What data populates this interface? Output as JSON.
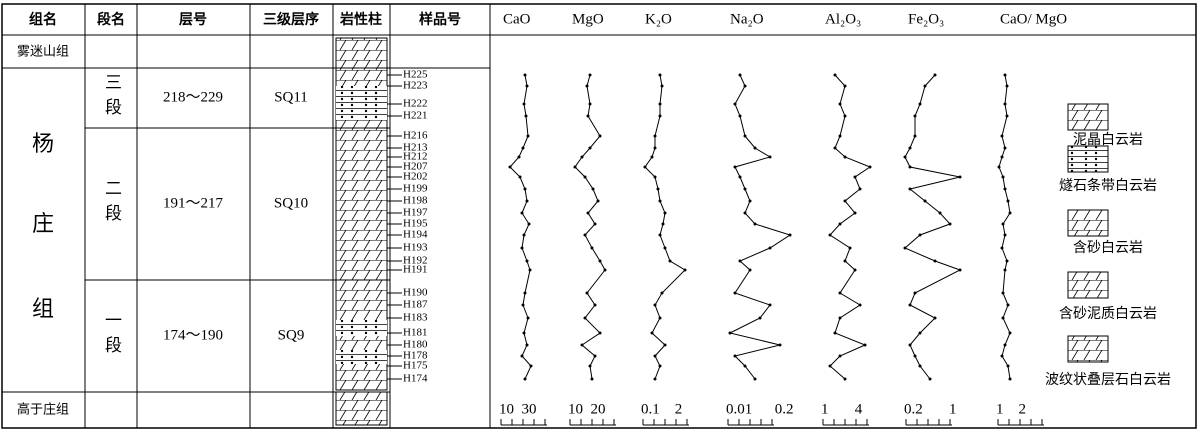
{
  "headers": [
    "组名",
    "段名",
    "层号",
    "三级层序",
    "岩性柱",
    "样品号"
  ],
  "formations": [
    "雾迷山组",
    "杨",
    "庄",
    "组",
    "高于庄组"
  ],
  "members": [
    {
      "name": "三段",
      "layers": "218～229",
      "sequence": "SQ11"
    },
    {
      "name": "二段",
      "layers": "191～217",
      "sequence": "SQ10"
    },
    {
      "name": "一段",
      "layers": "174～190",
      "sequence": "SQ9"
    }
  ],
  "samples": [
    "H225",
    "H223",
    "H222",
    "H221",
    "H216",
    "H213",
    "H212",
    "H207",
    "H202",
    "H199",
    "H198",
    "H197",
    "H195",
    "H194",
    "H193",
    "H192",
    "H191",
    "H190",
    "H187",
    "H183",
    "H181",
    "H180",
    "H178",
    "H175",
    "H174"
  ],
  "curves": [
    {
      "name": "CaO",
      "scale": "10  30"
    },
    {
      "name": "MgO",
      "scale": "10  20"
    },
    {
      "name": "K₂O",
      "scale": "0.1    2"
    },
    {
      "name": "Na₂O",
      "scale": "0.01      0.2"
    },
    {
      "name": "Al₂O₃",
      "scale": "1       4"
    },
    {
      "name": "Fe₂O₃",
      "scale": "0.2       1"
    },
    {
      "name": "CaO/ MgO",
      "scale": "1    2"
    }
  ],
  "legend": [
    "泥晶白云岩",
    "燧石条带白云岩",
    "含砂白云岩",
    "含砂泥质白云岩",
    "波纹状叠层石白云岩"
  ]
}
